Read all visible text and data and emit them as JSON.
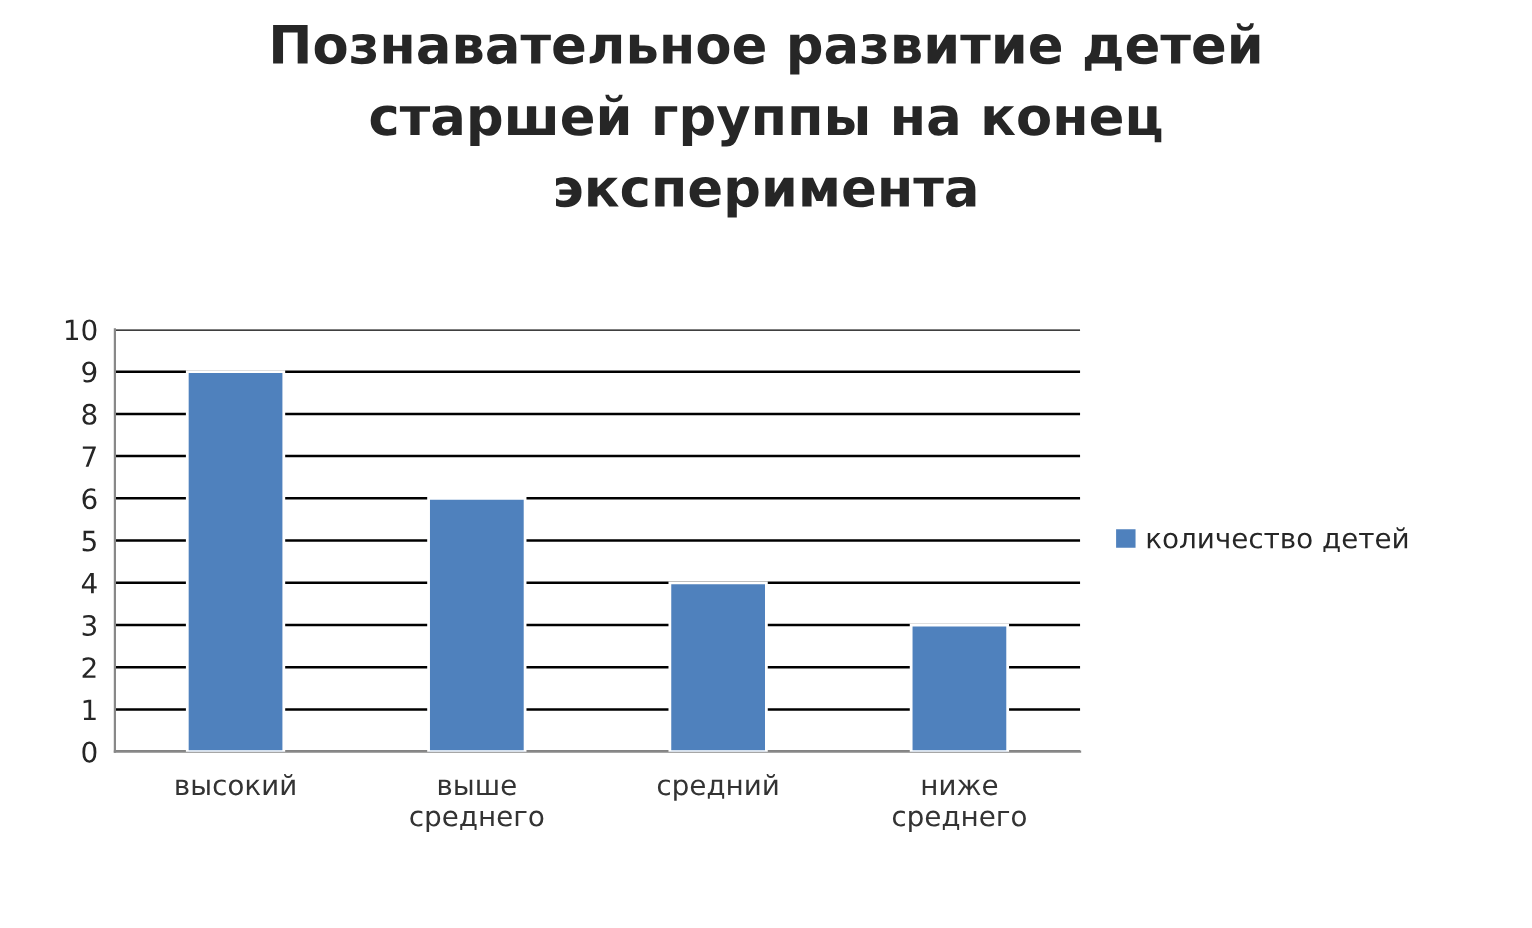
{
  "chart_data": {
    "type": "bar",
    "title": "Познавательное развитие детей\nстаршей группы на конец\nэксперимента",
    "categories": [
      "высокий",
      "выше\nсреднего",
      "средний",
      "ниже\nсреднего"
    ],
    "series": [
      {
        "name": "количество детей",
        "color": "#4f81bd",
        "values": [
          9,
          6,
          4,
          3
        ]
      }
    ],
    "ylim": [
      0,
      10
    ],
    "yticks": [
      0,
      1,
      2,
      3,
      4,
      5,
      6,
      7,
      8,
      9,
      10
    ],
    "grid": "y",
    "legend": "right"
  }
}
